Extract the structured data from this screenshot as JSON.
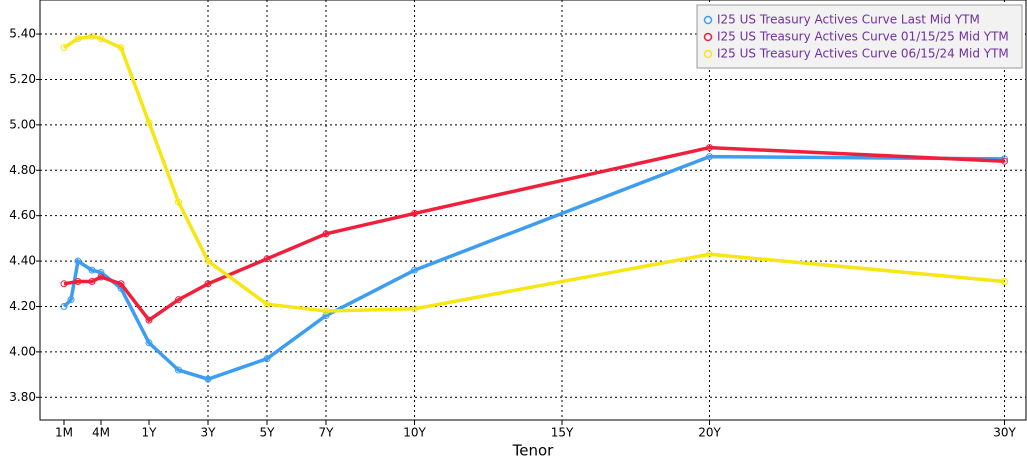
{
  "chart_data": {
    "type": "line",
    "x_label": "Tenor",
    "xticks": [
      {
        "value": 0.083,
        "label": "1M"
      },
      {
        "value": 0.333,
        "label": "4M"
      },
      {
        "value": 1,
        "label": "1Y"
      },
      {
        "value": 3,
        "label": "3Y"
      },
      {
        "value": 5,
        "label": "5Y"
      },
      {
        "value": 7,
        "label": "7Y"
      },
      {
        "value": 10,
        "label": "10Y"
      },
      {
        "value": 15,
        "label": "15Y"
      },
      {
        "value": 20,
        "label": "20Y"
      },
      {
        "value": 30,
        "label": "30Y"
      }
    ],
    "ylim": [
      3.7,
      5.55
    ],
    "yticks": [
      {
        "value": 3.8,
        "label": "3.80"
      },
      {
        "value": 4.0,
        "label": "4.00"
      },
      {
        "value": 4.2,
        "label": "4.20"
      },
      {
        "value": 4.4,
        "label": "4.40"
      },
      {
        "value": 4.6,
        "label": "4.60"
      },
      {
        "value": 4.8,
        "label": "4.80"
      },
      {
        "value": 5.0,
        "label": "5.00"
      },
      {
        "value": 5.2,
        "label": "5.20"
      },
      {
        "value": 5.4,
        "label": "5.40"
      }
    ],
    "grid": true,
    "legend": "top-right",
    "series": [
      {
        "name": "I25 US Treasury Actives Curve Last Mid YTM",
        "color": "#3d9df0",
        "x": [
          0.083,
          0.125,
          0.167,
          0.25,
          0.333,
          0.5,
          1,
          2,
          3,
          5,
          7,
          10,
          20,
          30
        ],
        "values": [
          4.2,
          4.23,
          4.4,
          4.36,
          4.35,
          4.28,
          4.04,
          3.92,
          3.88,
          3.97,
          4.16,
          4.36,
          4.86,
          4.85
        ]
      },
      {
        "name": "I25 US Treasury Actives Curve 01/15/25 Mid YTM",
        "color": "#f0203c",
        "x": [
          0.083,
          0.167,
          0.25,
          0.333,
          0.5,
          1,
          2,
          3,
          5,
          7,
          10,
          20,
          30
        ],
        "values": [
          4.3,
          4.31,
          4.31,
          4.33,
          4.3,
          4.14,
          4.23,
          4.3,
          4.41,
          4.52,
          4.61,
          4.9,
          4.84
        ]
      },
      {
        "name": "I25 US Treasury Actives Curve 06/15/24 Mid YTM",
        "color": "#f5e614",
        "x": [
          0.083,
          0.167,
          0.25,
          0.333,
          0.5,
          1,
          2,
          3,
          5,
          7,
          10,
          20,
          30
        ],
        "values": [
          5.34,
          5.38,
          5.39,
          5.38,
          5.34,
          5.01,
          4.66,
          4.4,
          4.21,
          4.18,
          4.19,
          4.43,
          4.31
        ]
      }
    ]
  }
}
